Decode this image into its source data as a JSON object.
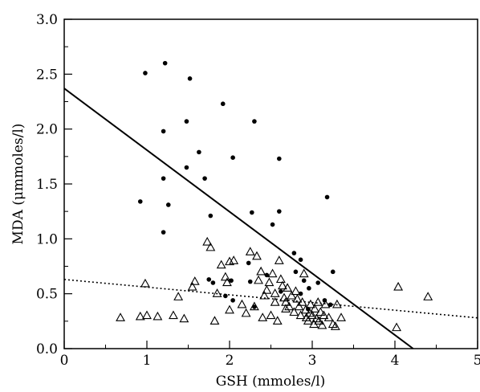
{
  "chart_data": {
    "type": "scatter",
    "title": "",
    "xlabel": "GSH (mmoles/l)",
    "ylabel": "MDA (μmmoles/l)",
    "xlim": [
      0,
      5
    ],
    "ylim": [
      0,
      3
    ],
    "grid": false,
    "x_ticks": [
      "0",
      "1",
      "2",
      "3",
      "4",
      "5"
    ],
    "y_ticks": [
      "0.0",
      "0.5",
      "1.0",
      "1.5",
      "2.0",
      "2.5",
      "3.0"
    ],
    "series": [
      {
        "marker": "filled-circle",
        "color": "#000000",
        "points": [
          [
            0.98,
            2.51
          ],
          [
            1.22,
            2.6
          ],
          [
            1.52,
            2.46
          ],
          [
            1.2,
            1.98
          ],
          [
            1.48,
            2.07
          ],
          [
            1.92,
            2.23
          ],
          [
            2.3,
            2.07
          ],
          [
            1.63,
            1.79
          ],
          [
            2.04,
            1.74
          ],
          [
            1.48,
            1.65
          ],
          [
            1.2,
            1.55
          ],
          [
            1.7,
            1.55
          ],
          [
            0.92,
            1.34
          ],
          [
            1.26,
            1.31
          ],
          [
            2.27,
            1.24
          ],
          [
            2.6,
            1.25
          ],
          [
            1.77,
            1.21
          ],
          [
            2.52,
            1.13
          ],
          [
            3.18,
            1.38
          ],
          [
            1.2,
            1.06
          ],
          [
            2.6,
            1.73
          ],
          [
            2.78,
            0.87
          ],
          [
            2.86,
            0.81
          ],
          [
            2.23,
            0.78
          ],
          [
            3.25,
            0.7
          ],
          [
            2.8,
            0.7
          ],
          [
            2.45,
            0.67
          ],
          [
            2.02,
            0.62
          ],
          [
            1.75,
            0.63
          ],
          [
            2.25,
            0.61
          ],
          [
            3.07,
            0.6
          ],
          [
            3.22,
            0.4
          ],
          [
            2.9,
            0.62
          ],
          [
            1.95,
            0.48
          ],
          [
            2.04,
            0.44
          ],
          [
            2.3,
            0.38
          ],
          [
            2.62,
            0.52
          ],
          [
            2.86,
            0.5
          ],
          [
            2.96,
            0.55
          ],
          [
            3.15,
            0.44
          ],
          [
            2.95,
            0.36
          ],
          [
            1.8,
            0.6
          ]
        ]
      },
      {
        "marker": "open-triangle",
        "color": "#000000",
        "points": [
          [
            0.68,
            0.28
          ],
          [
            0.92,
            0.29
          ],
          [
            0.98,
            0.59
          ],
          [
            1.0,
            0.3
          ],
          [
            1.13,
            0.29
          ],
          [
            1.32,
            0.3
          ],
          [
            1.38,
            0.47
          ],
          [
            1.45,
            0.27
          ],
          [
            1.55,
            0.56
          ],
          [
            1.58,
            0.61
          ],
          [
            1.82,
            0.25
          ],
          [
            1.73,
            0.97
          ],
          [
            1.77,
            0.92
          ],
          [
            1.9,
            0.76
          ],
          [
            2.0,
            0.79
          ],
          [
            2.05,
            0.8
          ],
          [
            1.95,
            0.65
          ],
          [
            1.97,
            0.6
          ],
          [
            2.2,
            0.32
          ],
          [
            2.3,
            0.38
          ],
          [
            2.25,
            0.88
          ],
          [
            2.33,
            0.84
          ],
          [
            2.38,
            0.7
          ],
          [
            2.42,
            0.48
          ],
          [
            2.45,
            0.53
          ],
          [
            2.48,
            0.6
          ],
          [
            2.5,
            0.3
          ],
          [
            2.52,
            0.68
          ],
          [
            2.55,
            0.5
          ],
          [
            2.58,
            0.25
          ],
          [
            2.6,
            0.8
          ],
          [
            2.62,
            0.63
          ],
          [
            2.64,
            0.57
          ],
          [
            2.66,
            0.46
          ],
          [
            2.68,
            0.42
          ],
          [
            2.7,
            0.55
          ],
          [
            2.72,
            0.38
          ],
          [
            2.75,
            0.48
          ],
          [
            2.78,
            0.33
          ],
          [
            2.8,
            0.52
          ],
          [
            2.82,
            0.45
          ],
          [
            2.84,
            0.38
          ],
          [
            2.86,
            0.3
          ],
          [
            2.88,
            0.42
          ],
          [
            2.9,
            0.68
          ],
          [
            2.92,
            0.35
          ],
          [
            2.93,
            0.28
          ],
          [
            2.95,
            0.25
          ],
          [
            2.97,
            0.32
          ],
          [
            2.98,
            0.4
          ],
          [
            3.0,
            0.3
          ],
          [
            3.02,
            0.22
          ],
          [
            3.03,
            0.36
          ],
          [
            3.05,
            0.27
          ],
          [
            3.07,
            0.42
          ],
          [
            3.08,
            0.25
          ],
          [
            3.1,
            0.33
          ],
          [
            3.12,
            0.21
          ],
          [
            3.14,
            0.3
          ],
          [
            3.16,
            0.4
          ],
          [
            3.2,
            0.28
          ],
          [
            3.25,
            0.22
          ],
          [
            3.3,
            0.4
          ],
          [
            3.35,
            0.28
          ],
          [
            3.28,
            0.2
          ],
          [
            2.35,
            0.62
          ],
          [
            2.4,
            0.28
          ],
          [
            2.15,
            0.4
          ],
          [
            2.0,
            0.35
          ],
          [
            1.85,
            0.5
          ],
          [
            4.04,
            0.56
          ],
          [
            4.02,
            0.19
          ],
          [
            4.4,
            0.47
          ],
          [
            2.55,
            0.42
          ],
          [
            2.68,
            0.36
          ]
        ]
      }
    ],
    "fit_lines": [
      {
        "style": "solid",
        "x": [
          0,
          4.22
        ],
        "y": [
          2.37,
          0.0
        ]
      },
      {
        "style": "dotted",
        "x": [
          0,
          5
        ],
        "y": [
          0.63,
          0.28
        ]
      }
    ]
  }
}
